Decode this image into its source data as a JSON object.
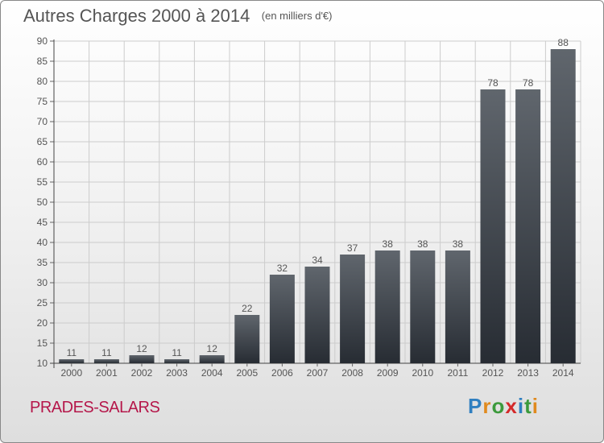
{
  "title": "Autres Charges 2000 à 2014",
  "subtitle": "(en milliers d'€)",
  "commune": "PRADES-SALARS",
  "logo": {
    "letters": [
      "P",
      "r",
      "o",
      "x",
      "i",
      "t",
      "i"
    ],
    "colors": [
      "#2f7fc0",
      "#e08a1e",
      "#3c9a3c",
      "#d42a2a",
      "#2f7fc0",
      "#3c9a3c",
      "#e08a1e"
    ]
  },
  "colors": {
    "bar_top": "#60666d",
    "bar_bottom": "#272c33",
    "grid": "#cccccc"
  },
  "chart_data": {
    "type": "bar",
    "categories": [
      "2000",
      "2001",
      "2002",
      "2003",
      "2004",
      "2005",
      "2006",
      "2007",
      "2008",
      "2009",
      "2010",
      "2011",
      "2012",
      "2013",
      "2014"
    ],
    "values": [
      11,
      11,
      12,
      11,
      12,
      22,
      32,
      34,
      37,
      38,
      38,
      38,
      78,
      78,
      88
    ],
    "ylim": [
      10,
      90
    ],
    "yticks": [
      10,
      15,
      20,
      25,
      30,
      35,
      40,
      45,
      50,
      55,
      60,
      65,
      70,
      75,
      80,
      85,
      90
    ],
    "grid": true,
    "data_labels": true
  }
}
